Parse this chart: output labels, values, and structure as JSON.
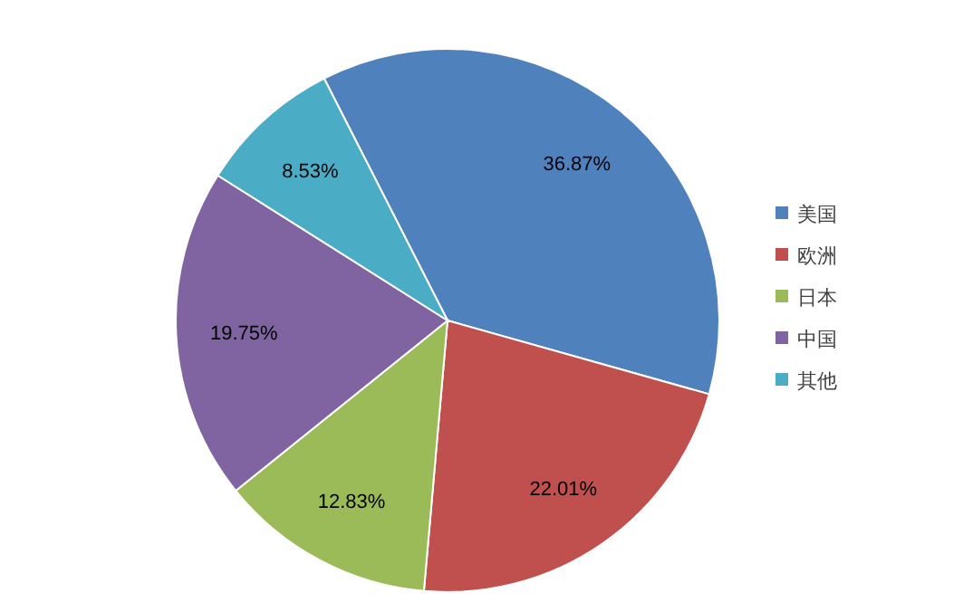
{
  "chart_data": {
    "type": "pie",
    "categories": [
      "美国",
      "欧洲",
      "日本",
      "中国",
      "其他"
    ],
    "values": [
      36.87,
      22.01,
      12.83,
      19.75,
      8.53
    ],
    "colors": [
      "#4f81bd",
      "#c0504d",
      "#9bbb59",
      "#8064a2",
      "#4bacc6"
    ],
    "value_labels": [
      "36.87%",
      "22.01%",
      "12.83%",
      "19.75%",
      "8.53%"
    ],
    "legend": "right"
  }
}
